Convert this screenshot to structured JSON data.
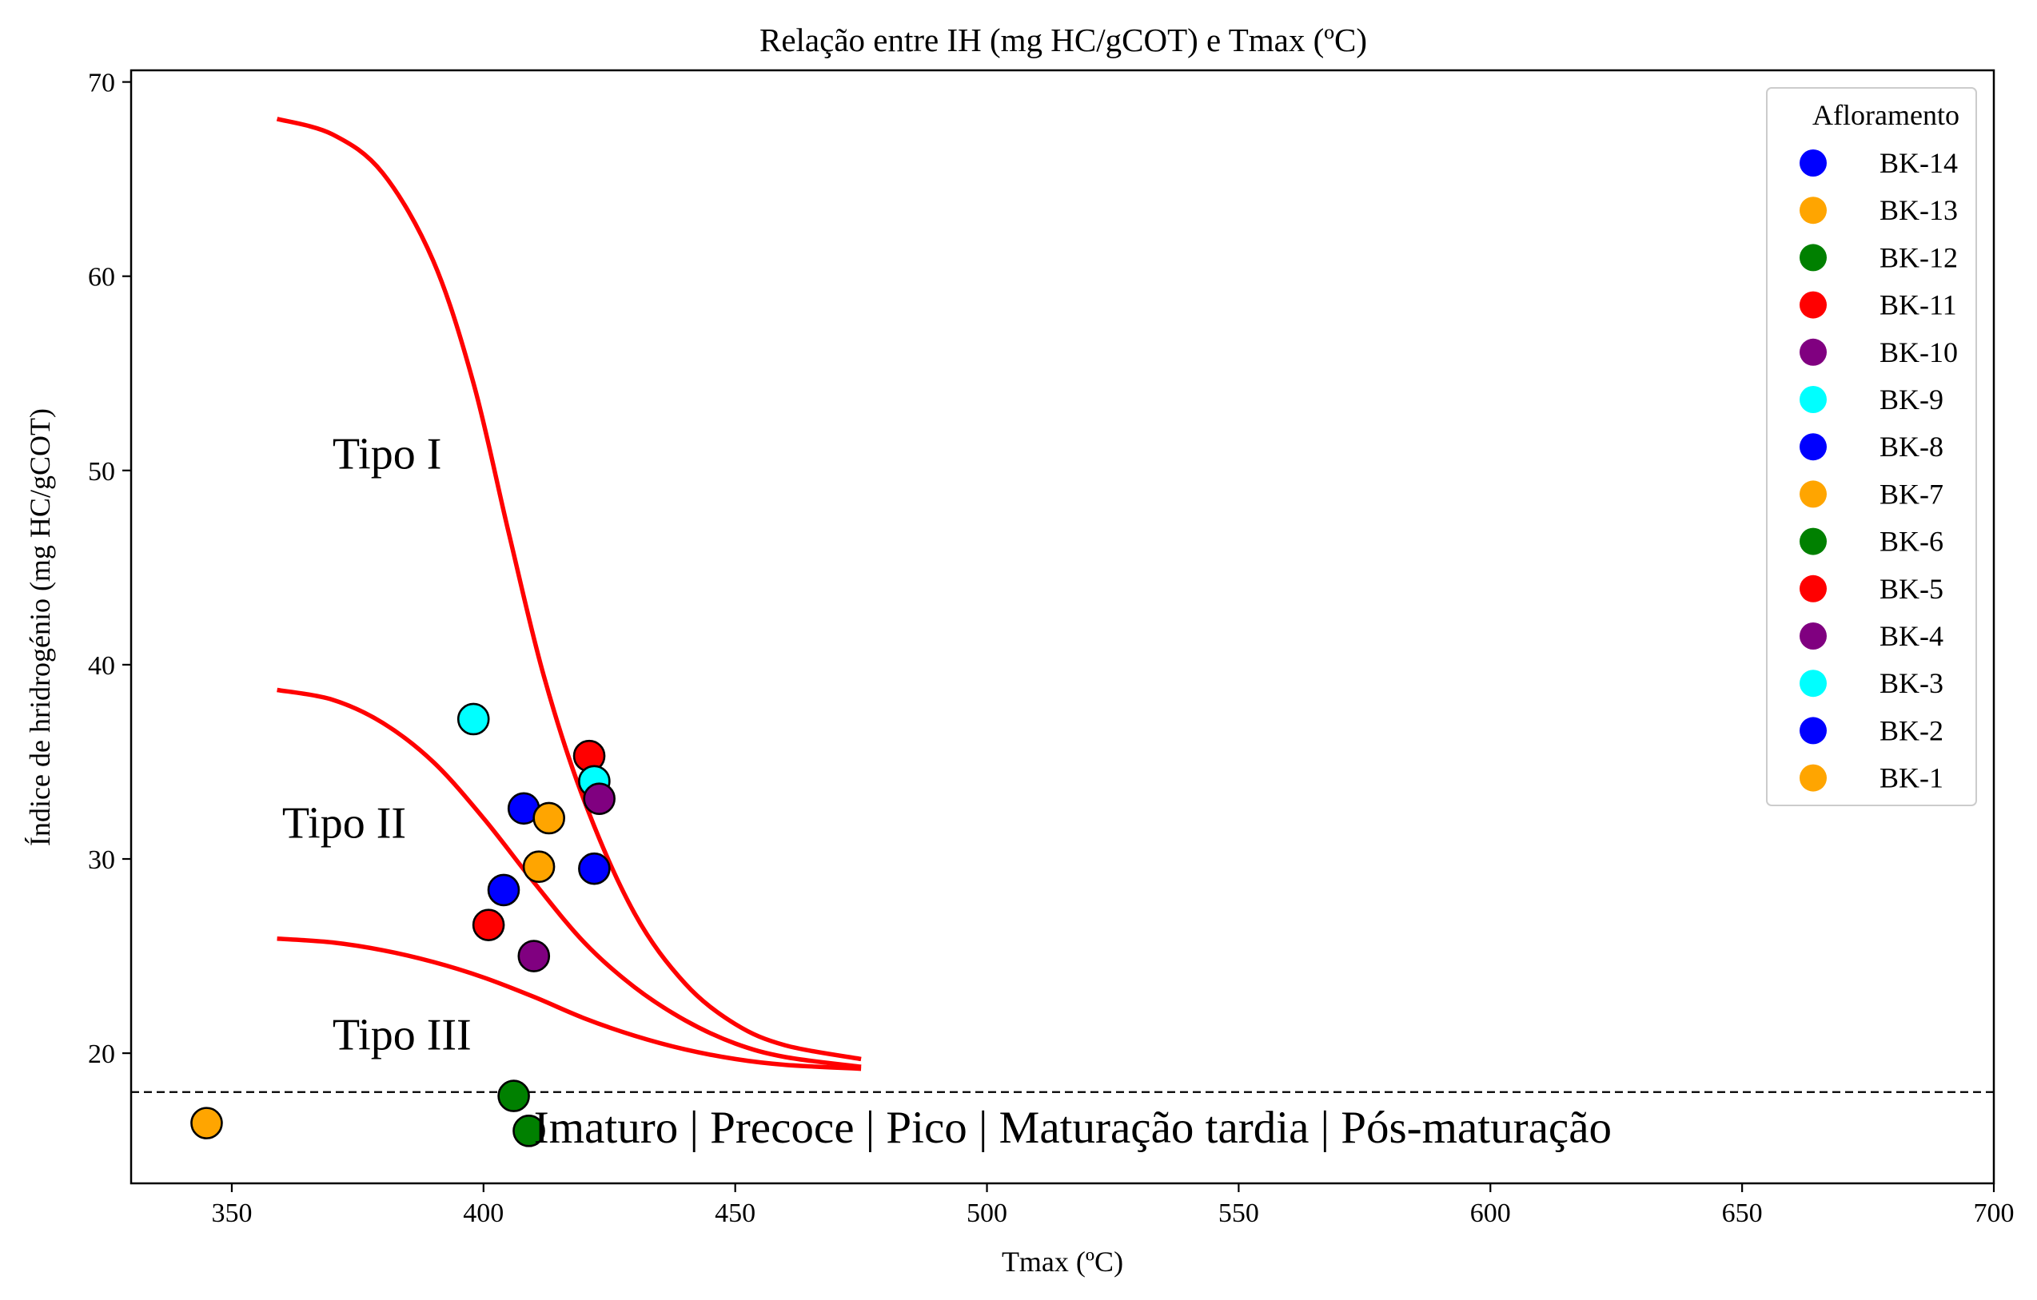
{
  "chart_data": {
    "type": "scatter",
    "title": "Relação entre IH (mg HC/gCOT) e Tmax (ºC)",
    "xlabel": "Tmax (ºC)",
    "ylabel": "Índice de hridrogénio (mg HC/gCOT)",
    "xlim": [
      330,
      700
    ],
    "ylim": [
      13.3,
      70.6
    ],
    "xticks": [
      350,
      400,
      450,
      500,
      550,
      600,
      650,
      700
    ],
    "yticks": [
      20,
      30,
      40,
      50,
      60,
      70
    ],
    "grid": false,
    "legend": {
      "title": "Afloramento",
      "placement": "top-right",
      "entries": [
        {
          "name": "BK-14",
          "color": "#0000ff"
        },
        {
          "name": "BK-13",
          "color": "#ffa500"
        },
        {
          "name": "BK-12",
          "color": "#008000"
        },
        {
          "name": "BK-11",
          "color": "#ff0000"
        },
        {
          "name": "BK-10",
          "color": "#800080"
        },
        {
          "name": "BK-9",
          "color": "#00ffff"
        },
        {
          "name": "BK-8",
          "color": "#0000ff"
        },
        {
          "name": "BK-7",
          "color": "#ffa500"
        },
        {
          "name": "BK-6",
          "color": "#008000"
        },
        {
          "name": "BK-5",
          "color": "#ff0000"
        },
        {
          "name": "BK-4",
          "color": "#800080"
        },
        {
          "name": "BK-3",
          "color": "#00ffff"
        },
        {
          "name": "BK-2",
          "color": "#0000ff"
        },
        {
          "name": "BK-1",
          "color": "#ffa500"
        }
      ]
    },
    "points": [
      {
        "x": 398,
        "y": 37.2,
        "color": "#00ffff"
      },
      {
        "x": 421,
        "y": 35.3,
        "color": "#ff0000"
      },
      {
        "x": 422,
        "y": 34.0,
        "color": "#00ffff"
      },
      {
        "x": 423,
        "y": 33.1,
        "color": "#800080"
      },
      {
        "x": 408,
        "y": 32.6,
        "color": "#0000ff"
      },
      {
        "x": 413,
        "y": 32.1,
        "color": "#ffa500"
      },
      {
        "x": 411,
        "y": 29.6,
        "color": "#ffa500"
      },
      {
        "x": 422,
        "y": 29.5,
        "color": "#0000ff"
      },
      {
        "x": 404,
        "y": 28.4,
        "color": "#0000ff"
      },
      {
        "x": 401,
        "y": 26.6,
        "color": "#ff0000"
      },
      {
        "x": 410,
        "y": 25.0,
        "color": "#800080"
      },
      {
        "x": 406,
        "y": 17.8,
        "color": "#008000"
      },
      {
        "x": 409,
        "y": 16.0,
        "color": "#008000"
      },
      {
        "x": 345,
        "y": 16.4,
        "color": "#ffa500"
      }
    ],
    "curves": [
      {
        "label": "Tipo I",
        "color": "#ff0000",
        "points": [
          [
            359,
            68.1
          ],
          [
            370,
            67.3
          ],
          [
            380,
            65.3
          ],
          [
            390,
            60.8
          ],
          [
            398,
            54.5
          ],
          [
            405,
            46.8
          ],
          [
            412,
            39.4
          ],
          [
            420,
            33.0
          ],
          [
            430,
            27.2
          ],
          [
            440,
            23.6
          ],
          [
            450,
            21.5
          ],
          [
            460,
            20.4
          ],
          [
            475,
            19.7
          ]
        ]
      },
      {
        "label": "Tipo II",
        "color": "#ff0000",
        "points": [
          [
            359,
            38.7
          ],
          [
            370,
            38.2
          ],
          [
            380,
            37.0
          ],
          [
            390,
            35.0
          ],
          [
            400,
            32.1
          ],
          [
            410,
            28.8
          ],
          [
            420,
            25.7
          ],
          [
            430,
            23.4
          ],
          [
            440,
            21.7
          ],
          [
            450,
            20.5
          ],
          [
            460,
            19.8
          ],
          [
            475,
            19.3
          ]
        ]
      },
      {
        "label": "Tipo III",
        "color": "#ff0000",
        "points": [
          [
            359,
            25.9
          ],
          [
            370,
            25.7
          ],
          [
            380,
            25.3
          ],
          [
            390,
            24.7
          ],
          [
            400,
            23.9
          ],
          [
            410,
            22.9
          ],
          [
            420,
            21.8
          ],
          [
            430,
            20.9
          ],
          [
            440,
            20.2
          ],
          [
            450,
            19.7
          ],
          [
            460,
            19.4
          ],
          [
            475,
            19.2
          ]
        ]
      }
    ],
    "hline": {
      "y": 18.0,
      "style": "dashed",
      "color": "#000000"
    },
    "annotations": [
      {
        "text": "Tipo I",
        "x": 370,
        "y": 50.1
      },
      {
        "text": "Tipo II",
        "x": 360,
        "y": 31.1
      },
      {
        "text": "Tipo III",
        "x": 370,
        "y": 20.2
      }
    ],
    "maturity_label": {
      "text": "Imaturo |  Precoce |  Pico | Maturação tardia | Pós-maturação",
      "x": 410,
      "y": 15.4
    }
  }
}
